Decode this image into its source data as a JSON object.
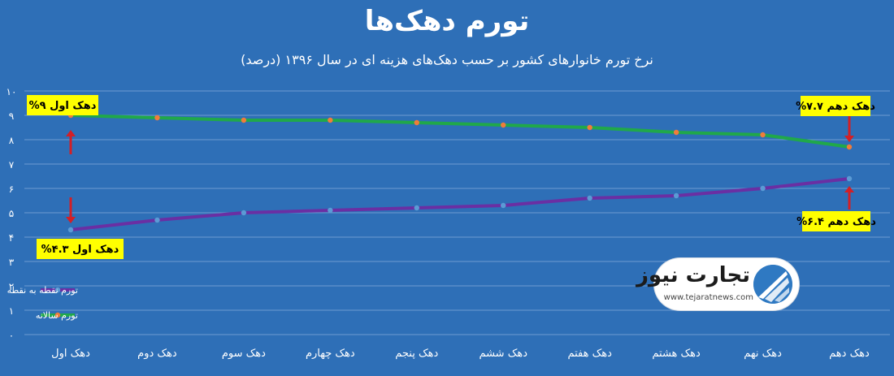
{
  "header": {
    "title": "تورم دهک‌ها",
    "subtitle": "نرخ تورم خانوارهای کشور بر حسب دهک‌های هزینه ای در سال ۱۳۹۶ (درصد)"
  },
  "logo": {
    "name": "تجارت نیوز",
    "url": "www.tejaratnews.com"
  },
  "colors": {
    "background": "#2e6fb7",
    "annual": "#20a84a",
    "point": "#6a2fa3",
    "annual_marker": "#f07c3a",
    "point_marker": "#5b9bd5",
    "callout": "#ffff00",
    "arrow": "#d31f26"
  },
  "chart_data": {
    "type": "line",
    "categories": [
      "دهک اول",
      "دهک دوم",
      "دهک سوم",
      "دهک چهارم",
      "دهک پنجم",
      "دهک ششم",
      "دهک هفتم",
      "دهک هشتم",
      "دهک نهم",
      "دهک دهم"
    ],
    "ylim": [
      0,
      10
    ],
    "yticks": [
      "۰",
      "۱",
      "۲",
      "۳",
      "۴",
      "۵",
      "۶",
      "۷",
      "۸",
      "۹",
      "۱۰"
    ],
    "grid": true,
    "legend_position": "bottom-left",
    "series": [
      {
        "name": "تورم سالانه",
        "values": [
          9.0,
          8.9,
          8.8,
          8.8,
          8.7,
          8.6,
          8.5,
          8.3,
          8.2,
          7.7
        ]
      },
      {
        "name": "تورم نقطه به نقطه",
        "values": [
          4.3,
          4.7,
          5.0,
          5.1,
          5.2,
          5.3,
          5.6,
          5.7,
          6.0,
          6.4
        ]
      }
    ],
    "annotations": [
      {
        "series": 0,
        "index": 0,
        "text": "دهک اول ۹%"
      },
      {
        "series": 0,
        "index": 9,
        "text": "دهک دهم ۷.۷%"
      },
      {
        "series": 1,
        "index": 0,
        "text": "دهک اول ۴.۳%"
      },
      {
        "series": 1,
        "index": 9,
        "text": "دهک دهم ۶.۴%"
      }
    ]
  }
}
